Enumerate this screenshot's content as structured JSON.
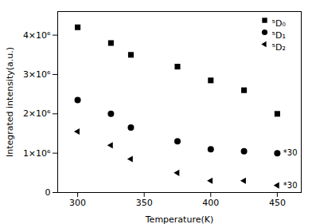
{
  "chart_data": {
    "type": "scatter",
    "xlabel": "Temperature(K)",
    "ylabel": "Integrated intensity(a.u.)",
    "xlim": [
      285,
      468
    ],
    "ylim": [
      0,
      4600000
    ],
    "xticks": [
      300,
      350,
      400,
      450
    ],
    "yticks": [
      0,
      {
        "value": 1000000,
        "label": "1×10⁶"
      },
      {
        "value": 2000000,
        "label": "2×10⁶"
      },
      {
        "value": 3000000,
        "label": "3×10⁶"
      },
      {
        "value": 4000000,
        "label": "4×10⁶"
      }
    ],
    "grid": false,
    "legend": "upper right",
    "color": "black",
    "series": [
      {
        "name": "⁵D₀",
        "marker": "square",
        "x": [
          300,
          325,
          340,
          375,
          400,
          425,
          450
        ],
        "values": [
          4200000,
          3800000,
          3500000,
          3200000,
          2850000,
          2600000,
          2000000
        ]
      },
      {
        "name": "⁵D₁",
        "marker": "circle",
        "x": [
          300,
          325,
          340,
          375,
          400,
          425,
          450
        ],
        "values": [
          2350000,
          2000000,
          1650000,
          1300000,
          1100000,
          1050000,
          1000000
        ]
      },
      {
        "name": "⁵D₂",
        "marker": "triangle-left",
        "x": [
          300,
          325,
          340,
          375,
          400,
          425,
          450
        ],
        "values": [
          1550000,
          1200000,
          850000,
          500000,
          300000,
          300000,
          180000
        ]
      }
    ],
    "annotations": [
      {
        "text": "*30",
        "y": 1000000
      },
      {
        "text": "*30",
        "y": 180000
      }
    ]
  }
}
